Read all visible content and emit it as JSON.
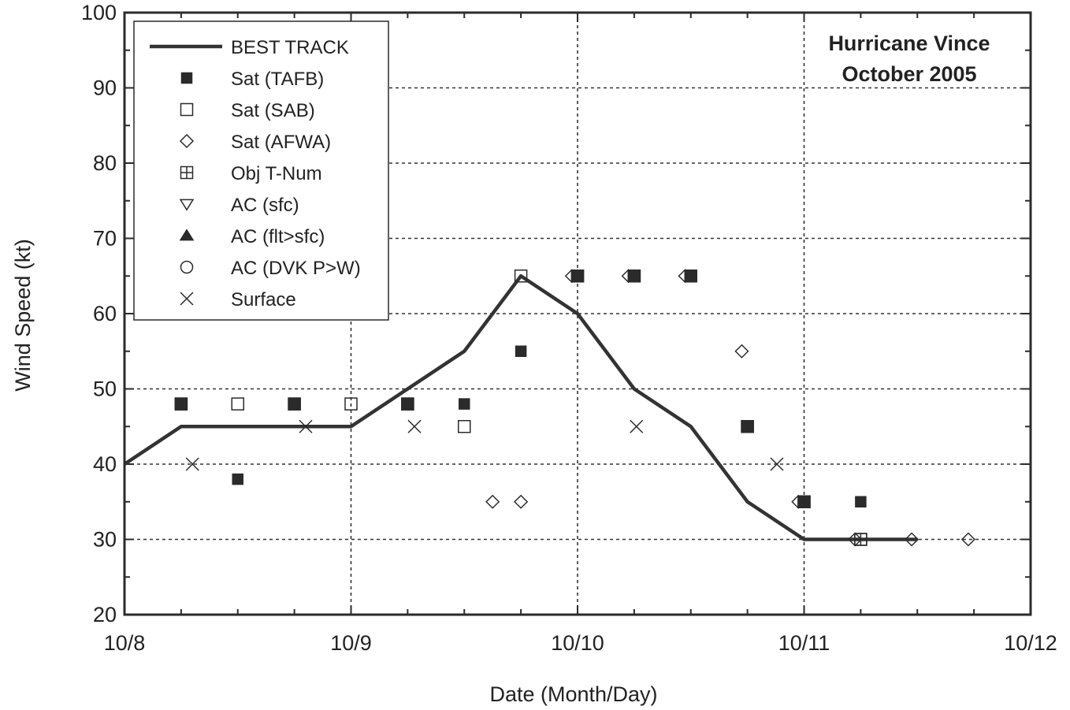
{
  "chart_data": {
    "type": "scatter",
    "title": "Hurricane Vince",
    "subtitle": "October 2005",
    "xlabel": "Date (Month/Day)",
    "ylabel": "Wind Speed (kt)",
    "x_unit_note": "10/8 = 8, 10/9 = 9 ...",
    "xlim": [
      8,
      12
    ],
    "ylim": [
      20,
      100
    ],
    "xticks": [
      8,
      9,
      10,
      11,
      12
    ],
    "xtick_labels": [
      "10/8",
      "10/9",
      "10/10",
      "10/11",
      "10/12"
    ],
    "yticks": [
      20,
      30,
      40,
      50,
      60,
      70,
      80,
      90,
      100
    ],
    "ytick_labels": [
      "20",
      "30",
      "40",
      "50",
      "60",
      "70",
      "80",
      "90",
      "100"
    ],
    "grid": true,
    "legend_position": "top-left",
    "series": [
      {
        "name": "BEST TRACK",
        "marker": "line",
        "x": [
          8.0,
          8.25,
          8.5,
          8.75,
          9.0,
          9.25,
          9.5,
          9.75,
          10.0,
          10.25,
          10.5,
          10.75,
          11.0,
          11.25,
          11.5
        ],
        "y": [
          40,
          45,
          45,
          45,
          45,
          50,
          55,
          65,
          60,
          50,
          45,
          35,
          30,
          30,
          30
        ]
      },
      {
        "name": "Sat (TAFB)",
        "marker": "filled-square",
        "x": [
          8.25,
          8.5,
          8.75,
          9.25,
          9.5,
          9.75,
          10.0,
          10.25,
          10.5,
          10.75,
          11.0,
          11.25
        ],
        "y": [
          48,
          38,
          48,
          48,
          48,
          55,
          65,
          65,
          65,
          45,
          35,
          35
        ]
      },
      {
        "name": "Sat (SAB)",
        "marker": "open-square",
        "x": [
          8.25,
          8.5,
          8.75,
          9.0,
          9.25,
          9.5,
          9.75,
          10.0,
          10.25,
          10.5,
          10.75,
          11.0,
          11.25
        ],
        "y": [
          48,
          48,
          48,
          48,
          48,
          45,
          65,
          65,
          65,
          65,
          45,
          35,
          30
        ]
      },
      {
        "name": "Sat (AFWA)",
        "marker": "diamond",
        "x": [
          9.625,
          9.75,
          9.975,
          10.225,
          10.475,
          10.725,
          10.975,
          11.225,
          11.475,
          11.725
        ],
        "y": [
          35,
          35,
          65,
          65,
          65,
          55,
          35,
          30,
          30,
          30
        ]
      },
      {
        "name": "Obj T-Num",
        "marker": "square-plus",
        "x": [
          8.25,
          8.75,
          9.25,
          10.0,
          10.25,
          10.5,
          10.75,
          11.0,
          11.25
        ],
        "y": [
          48,
          48,
          48,
          65,
          65,
          65,
          45,
          35,
          30
        ]
      },
      {
        "name": "AC (sfc)",
        "marker": "down-triangle",
        "x": [],
        "y": []
      },
      {
        "name": "AC (flt>sfc)",
        "marker": "up-triangle",
        "x": [],
        "y": []
      },
      {
        "name": "AC (DVK P>W)",
        "marker": "circle",
        "x": [],
        "y": []
      },
      {
        "name": "Surface",
        "marker": "x",
        "x": [
          8.3,
          8.8,
          9.28,
          10.26,
          10.88
        ],
        "y": [
          40,
          45,
          45,
          45,
          40
        ]
      }
    ],
    "colors": {
      "axis": "#2b2b2b",
      "line": "#333333",
      "grid": "#333333"
    }
  }
}
